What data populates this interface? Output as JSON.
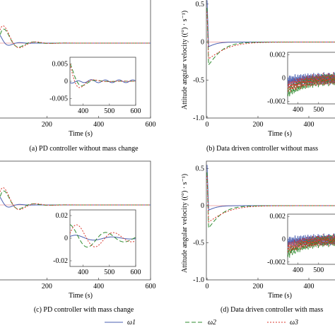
{
  "captions": {
    "a": "(a) PD controller without mass change",
    "b": "(b) Data driven controller without mass",
    "c": "(c) PD controller with mass change",
    "d": "(d) Data driven controller with mass"
  },
  "legend": [
    "ω1",
    "ω2",
    "ω3"
  ],
  "colors": {
    "w1": "#4a5fb0",
    "w2": "#2e8b2e",
    "w3": "#d9362b"
  },
  "chart_data": [
    {
      "type": "line",
      "id": "a",
      "xlabel": "Time (s)",
      "ylabel": "",
      "xlim": [
        0,
        600
      ],
      "xticks": [
        "200",
        "400",
        "600"
      ],
      "yticks": [],
      "inset": {
        "xlim": [
          350,
          600
        ],
        "ylim": [
          -0.007,
          0.007
        ],
        "xticks": [
          "400",
          "500",
          "600"
        ],
        "yticks": [
          "0.005",
          "0",
          "-0.005"
        ]
      }
    },
    {
      "type": "line",
      "id": "b",
      "xlabel": "Time (s)",
      "ylabel": "Attitude angular velocity ((°) · s⁻¹)",
      "xlim": [
        0,
        600
      ],
      "ylim": [
        -1.0,
        0.6
      ],
      "xticks": [
        "0",
        "200",
        "400"
      ],
      "yticks": [
        "0.5",
        "0",
        "-0.5",
        "-1.0"
      ],
      "inset": {
        "xlim": [
          350,
          600
        ],
        "ylim": [
          -0.0022,
          0.0022
        ],
        "xticks": [
          "400",
          "500"
        ],
        "yticks": [
          "0.002",
          "0",
          "-0.002"
        ]
      }
    },
    {
      "type": "line",
      "id": "c",
      "xlabel": "Time (s)",
      "ylabel": "",
      "xlim": [
        0,
        600
      ],
      "xticks": [
        "200",
        "400",
        "600"
      ],
      "yticks": [],
      "inset": {
        "xlim": [
          350,
          600
        ],
        "ylim": [
          -0.025,
          0.025
        ],
        "xticks": [
          "400",
          "500",
          "600"
        ],
        "yticks": [
          "0.02",
          "0",
          "-0.02"
        ]
      }
    },
    {
      "type": "line",
      "id": "d",
      "xlabel": "Time (s)",
      "ylabel": "Attitude angular velocity ((°) · s⁻¹)",
      "xlim": [
        0,
        600
      ],
      "ylim": [
        -1.0,
        0.6
      ],
      "xticks": [
        "0",
        "200",
        "400"
      ],
      "yticks": [
        "0.5",
        "0",
        "-0.5",
        "-1.0"
      ],
      "inset": {
        "xlim": [
          350,
          600
        ],
        "ylim": [
          -0.0022,
          0.0022
        ],
        "xticks": [
          "400",
          "500"
        ],
        "yticks": [
          "0.002",
          "0",
          "-0.002"
        ]
      }
    }
  ]
}
